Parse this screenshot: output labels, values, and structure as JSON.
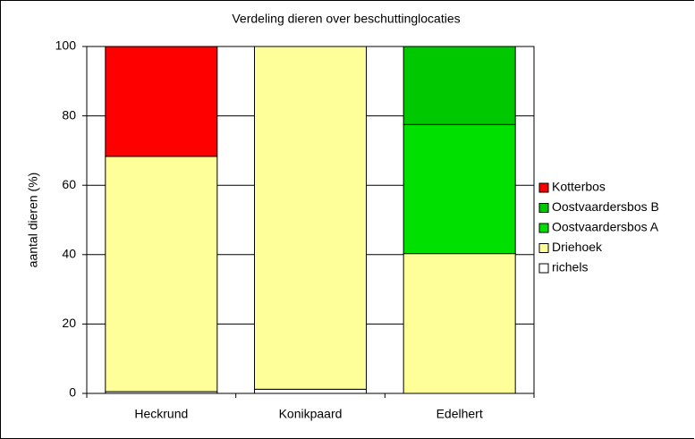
{
  "chart_data": {
    "type": "stacked_bar",
    "title": "Verdeling dieren over beschuttinglocaties",
    "y_label": "aantal dieren (%)",
    "categories": [
      "Heckrund",
      "Konikpaard",
      "Edelhert"
    ],
    "series": [
      {
        "name": "richels",
        "color": "#ffffff",
        "values": [
          0.5,
          1.2,
          0
        ]
      },
      {
        "name": "Driehoek",
        "color": "#ffff99",
        "values": [
          67.8,
          98.8,
          40.3
        ]
      },
      {
        "name": "Oostvaardersbos A",
        "color": "#00e000",
        "values": [
          0,
          0,
          37.2
        ]
      },
      {
        "name": "Oostvaardersbos B",
        "color": "#00c800",
        "values": [
          0,
          0,
          22.5
        ]
      },
      {
        "name": "Kotterbos",
        "color": "#ff0000",
        "values": [
          31.7,
          0,
          0
        ]
      }
    ],
    "ylim": [
      0,
      100
    ],
    "yticks": [
      0,
      20,
      40,
      60,
      80,
      100
    ],
    "grid": true,
    "legend": "right"
  }
}
